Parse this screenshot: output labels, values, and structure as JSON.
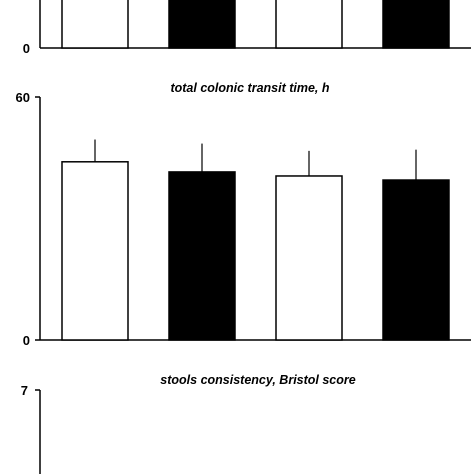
{
  "chart_data": [
    {
      "type": "bar",
      "title": "",
      "xlabel": "",
      "ylabel": "",
      "ylim": [
        0,
        null
      ],
      "yticks": [
        "0"
      ],
      "categories": [
        "",
        "",
        "",
        ""
      ],
      "bar_colors": [
        "#ffffff",
        "#000000",
        "#ffffff",
        "#000000"
      ],
      "partially_visible": true
    },
    {
      "type": "bar",
      "title": "total colonic transit time, h",
      "xlabel": "",
      "ylabel": "",
      "ylim": [
        0,
        60
      ],
      "yticks": [
        "0",
        "60"
      ],
      "categories": [
        "",
        "",
        "",
        ""
      ],
      "values": [
        44,
        41.5,
        40.5,
        39.5
      ],
      "errors": [
        5.5,
        7,
        6.2,
        7.5
      ],
      "bar_colors": [
        "#ffffff",
        "#000000",
        "#ffffff",
        "#000000"
      ],
      "grid": false
    },
    {
      "type": "bar",
      "title": "stools consistency, Bristol score",
      "xlabel": "",
      "ylabel": "",
      "ylim": [
        0,
        7
      ],
      "yticks": [
        "7"
      ],
      "categories": [],
      "partially_visible": true
    }
  ]
}
